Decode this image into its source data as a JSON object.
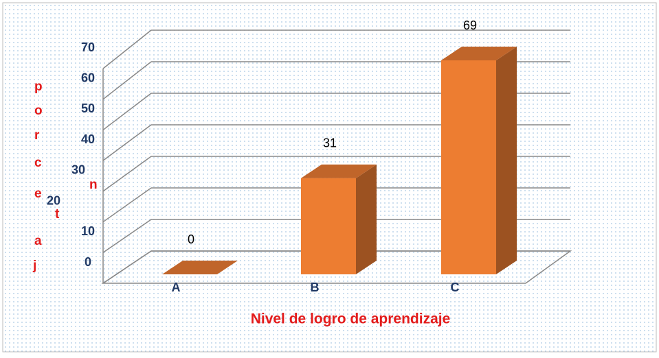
{
  "chart_data": {
    "type": "bar3d",
    "x_label": "Nivel de logro de aprendizaje",
    "y_label": "porcentaj",
    "categories": [
      "A",
      "B",
      "C"
    ],
    "values": [
      0,
      31,
      69
    ],
    "color": "#ed7d31",
    "ylim": [
      0,
      70
    ],
    "yticks": [
      0,
      10,
      20,
      30,
      40,
      50,
      60,
      70
    ],
    "grid": true
  }
}
